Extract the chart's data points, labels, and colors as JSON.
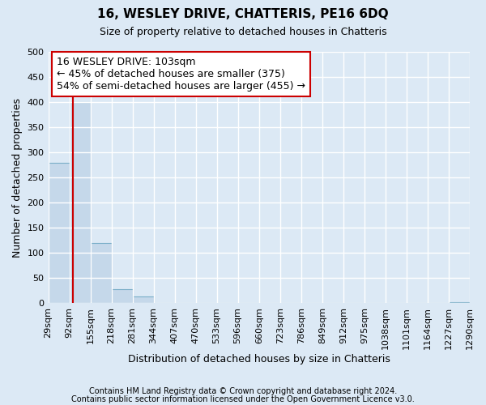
{
  "title": "16, WESLEY DRIVE, CHATTERIS, PE16 6DQ",
  "subtitle": "Size of property relative to detached houses in Chatteris",
  "xlabel": "Distribution of detached houses by size in Chatteris",
  "ylabel": "Number of detached properties",
  "footnote1": "Contains HM Land Registry data © Crown copyright and database right 2024.",
  "footnote2": "Contains public sector information licensed under the Open Government Licence v3.0.",
  "bar_edges": [
    29,
    92,
    155,
    218,
    281,
    344,
    407,
    470,
    533,
    596,
    660,
    723,
    786,
    849,
    912,
    975,
    1038,
    1101,
    1164,
    1227,
    1290
  ],
  "bar_heights": [
    280,
    400,
    120,
    28,
    14,
    0,
    0,
    0,
    0,
    0,
    0,
    0,
    0,
    0,
    0,
    0,
    0,
    0,
    0,
    2
  ],
  "bar_color": "#c5d8ea",
  "bar_edge_color": "#7aaec8",
  "vline_color": "#cc0000",
  "vline_x": 103,
  "annotation_title": "16 WESLEY DRIVE: 103sqm",
  "annotation_line1": "← 45% of detached houses are smaller (375)",
  "annotation_line2": "54% of semi-detached houses are larger (455) →",
  "annotation_box_facecolor": "#ffffff",
  "annotation_box_edgecolor": "#cc0000",
  "ylim": [
    0,
    500
  ],
  "yticks": [
    0,
    50,
    100,
    150,
    200,
    250,
    300,
    350,
    400,
    450,
    500
  ],
  "tick_labels": [
    "29sqm",
    "92sqm",
    "155sqm",
    "218sqm",
    "281sqm",
    "344sqm",
    "407sqm",
    "470sqm",
    "533sqm",
    "596sqm",
    "660sqm",
    "723sqm",
    "786sqm",
    "849sqm",
    "912sqm",
    "975sqm",
    "1038sqm",
    "1101sqm",
    "1164sqm",
    "1227sqm",
    "1290sqm"
  ],
  "background_color": "#dce9f5",
  "plot_background_color": "#dce9f5",
  "grid_color": "#ffffff",
  "title_fontsize": 11,
  "subtitle_fontsize": 9,
  "annotation_fontsize": 9,
  "axis_label_fontsize": 9,
  "tick_fontsize": 8,
  "footnote_fontsize": 7
}
